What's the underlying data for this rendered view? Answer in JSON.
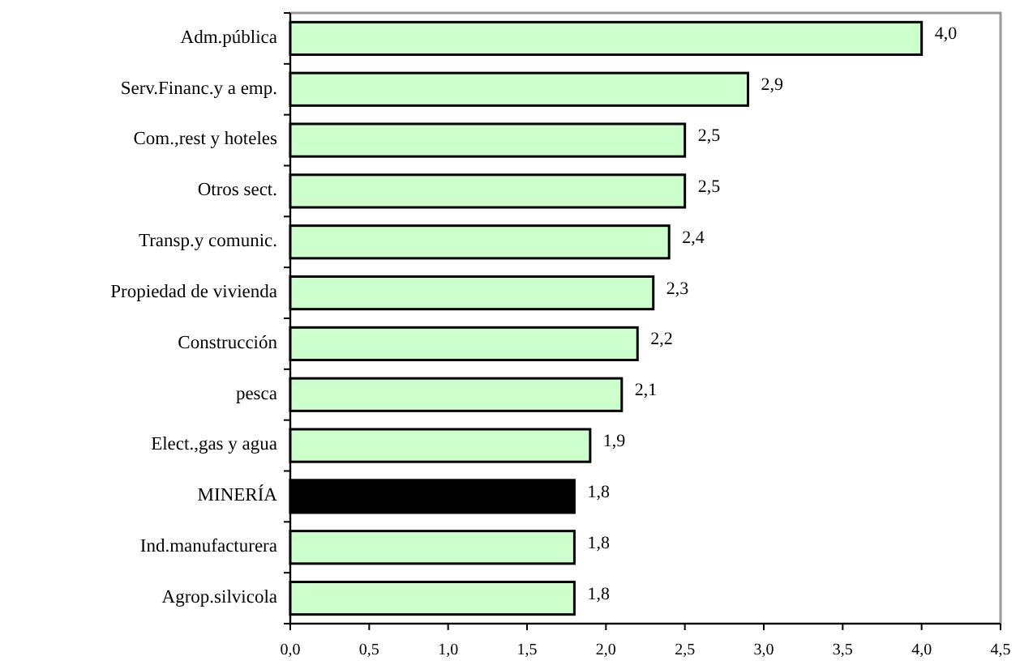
{
  "chart_data": {
    "type": "bar",
    "orientation": "horizontal",
    "categories": [
      "Adm.pública",
      "Serv.Financ.y a emp.",
      "Com.,rest y hoteles",
      "Otros sect.",
      "Transp.y comunic.",
      "Propiedad de vivienda",
      "Construcción",
      "pesca",
      "Elect.,gas y agua",
      "MINERÍA",
      "Ind.manufacturera",
      "Agrop.silvicola"
    ],
    "values": [
      4.0,
      2.9,
      2.5,
      2.5,
      2.4,
      2.3,
      2.2,
      2.1,
      1.9,
      1.8,
      1.8,
      1.8
    ],
    "value_labels": [
      "4,0",
      "2,9",
      "2,5",
      "2,5",
      "2,4",
      "2,3",
      "2,2",
      "2,1",
      "1,9",
      "1,8",
      "1,8",
      "1,8"
    ],
    "colors": [
      "#ccffcc",
      "#ccffcc",
      "#ccffcc",
      "#ccffcc",
      "#ccffcc",
      "#ccffcc",
      "#ccffcc",
      "#ccffcc",
      "#ccffcc",
      "#000000",
      "#ccffcc",
      "#ccffcc"
    ],
    "xlim": [
      0,
      4.5
    ],
    "xticks": [
      {
        "value": 0,
        "label": "0,0"
      },
      {
        "value": 0.5,
        "label": "0,5"
      },
      {
        "value": 1,
        "label": "1,0"
      },
      {
        "value": 1.5,
        "label": "1,5"
      },
      {
        "value": 2,
        "label": "2,0"
      },
      {
        "value": 2.5,
        "label": "2,5"
      },
      {
        "value": 3,
        "label": "3,0"
      },
      {
        "value": 3.5,
        "label": "3,5"
      },
      {
        "value": 4,
        "label": "4,0"
      },
      {
        "value": 4.5,
        "label": "4,5"
      }
    ],
    "grid": false
  }
}
